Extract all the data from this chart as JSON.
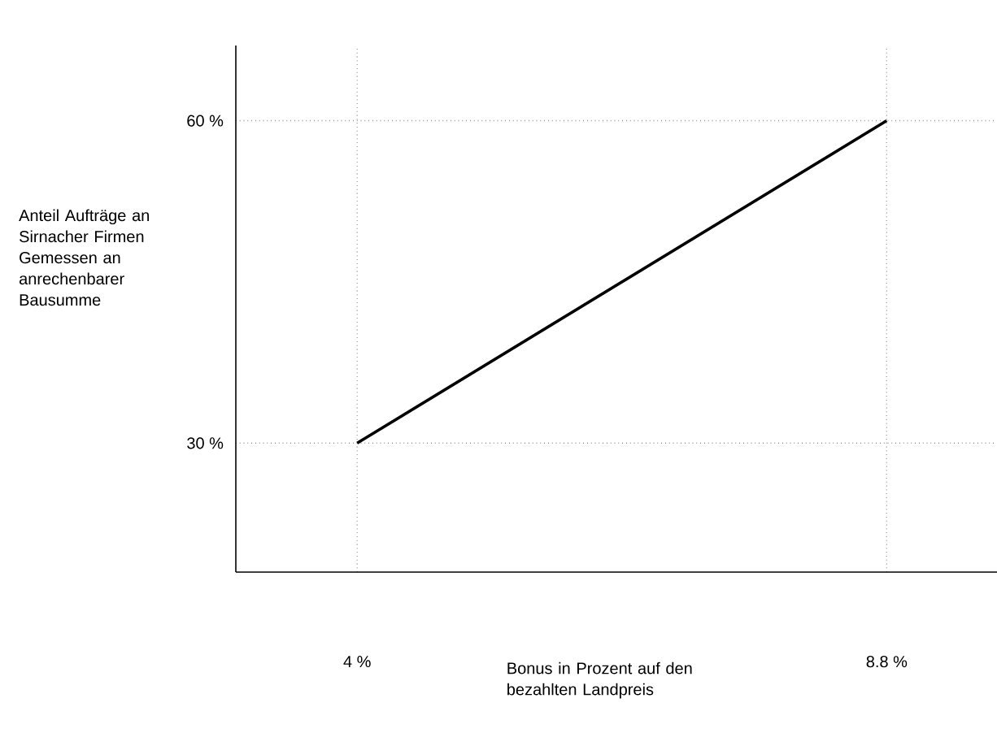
{
  "chart_data": {
    "type": "line",
    "xlabel": "Bonus in Prozent auf den bezahlten Landpreis",
    "ylabel": "Anteil Aufträge an Sirnacher Firmen Gemessen an anrechenbarer Bausumme",
    "x": [
      4,
      8.8
    ],
    "series": [
      {
        "color": "#000000",
        "values": [
          30,
          60
        ]
      }
    ],
    "xlim": [
      2.9,
      9.8
    ],
    "ylim": [
      18,
      67
    ],
    "xticks": [
      {
        "value": 4,
        "label": "4 %"
      },
      {
        "value": 8.8,
        "label": "8.8 %"
      }
    ],
    "yticks": [
      {
        "value": 30,
        "label": "30 %"
      },
      {
        "value": 60,
        "label": "60 %"
      }
    ],
    "grid": true,
    "marker": "none",
    "line_style": "solid"
  }
}
